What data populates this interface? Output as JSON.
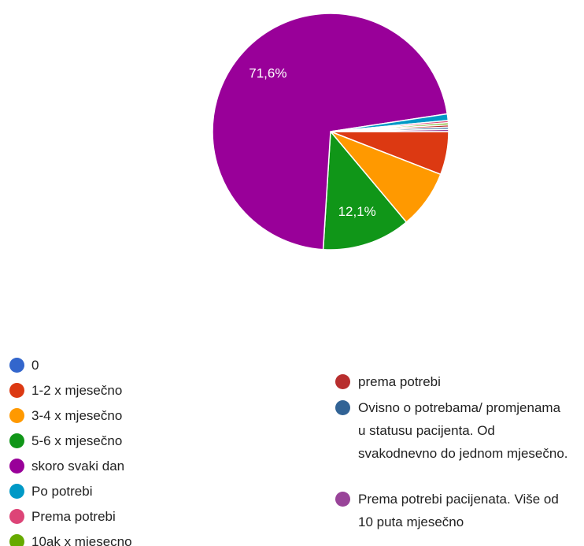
{
  "chart_data": {
    "type": "pie",
    "categories": [
      "0",
      "1-2 x mjesečno",
      "3-4 x mjesečno",
      "5-6 x mjesečno",
      "skoro svaki dan",
      "Po potrebi",
      "Prema potrebi",
      "10ak x mjesecno",
      "prema potrebi",
      "Ovisno o potrebama/ promjenama u statusu pacijenta. Od svakodnevno do jednom mjesečno.",
      "Prema potrebi pacijenata. Više od 10 puta mjesečno"
    ],
    "values": [
      0,
      5.9,
      8,
      12.1,
      71.6,
      0.9,
      0.3,
      0.3,
      0.3,
      0.3,
      0.3
    ],
    "value_labels": [
      null,
      null,
      null,
      "12,1%",
      "71,6%",
      null,
      null,
      null,
      null,
      null,
      null
    ],
    "colors": [
      "#3366cc",
      "#dc3912",
      "#ff9900",
      "#109618",
      "#990099",
      "#0099c6",
      "#dd4477",
      "#66aa00",
      "#b82e2e",
      "#316395",
      "#994499"
    ]
  }
}
